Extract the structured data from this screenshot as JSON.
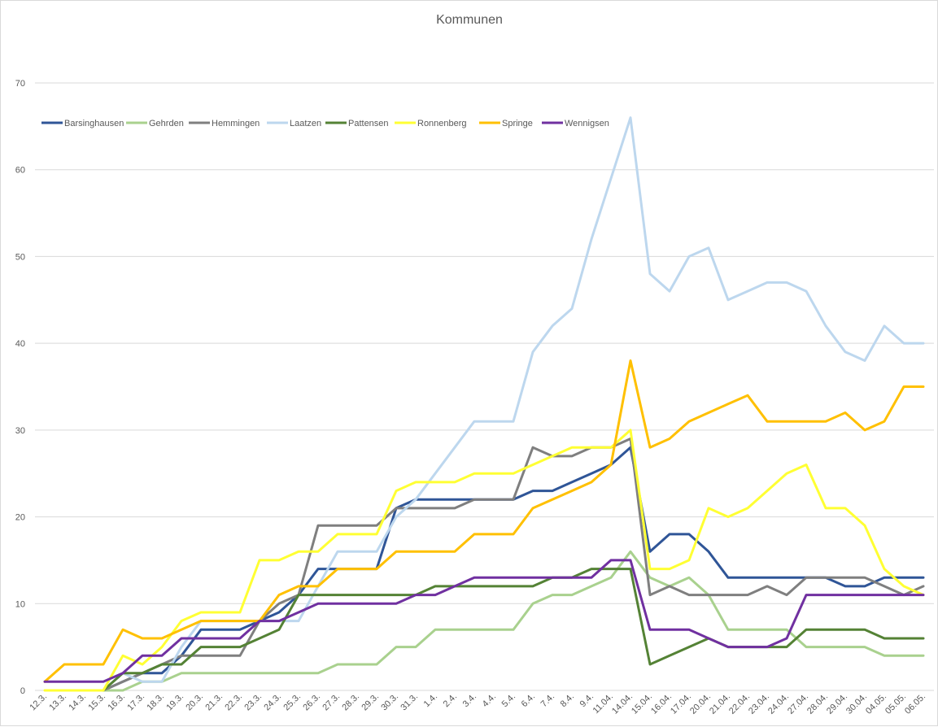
{
  "chart_data": {
    "type": "line",
    "title": "Kommunen",
    "xlabel": "",
    "ylabel": "",
    "ylim": [
      0,
      70
    ],
    "yticks": [
      0,
      10,
      20,
      30,
      40,
      50,
      60,
      70
    ],
    "grid": true,
    "legend_position": "top-left",
    "categories": [
      "12.3.",
      "13.3.",
      "14.3.",
      "15.3.",
      "16.3.",
      "17.3.",
      "18.3.",
      "19.3.",
      "20.3.",
      "21.3.",
      "22.3.",
      "23.3.",
      "24.3.",
      "25.3.",
      "26.3.",
      "27.3.",
      "28.3.",
      "29.3.",
      "30.3.",
      "31.3.",
      "1.4.",
      "2.4.",
      "3.4.",
      "4.4.",
      "5.4.",
      "6.4.",
      "7.4.",
      "8.4.",
      "9.4.",
      "11.04.",
      "14.04.",
      "15.04.",
      "16.04.",
      "17.04.",
      "20.04.",
      "21.04.",
      "22.04.",
      "23.04.",
      "24.04.",
      "27.04.",
      "28.04.",
      "29.04.",
      "30.04.",
      "04.05.",
      "05.05.",
      "06.05."
    ],
    "series": [
      {
        "name": "Barsinghausen",
        "color": "#2f5597",
        "values": [
          null,
          null,
          null,
          0,
          1,
          2,
          2,
          4,
          7,
          7,
          7,
          8,
          9,
          11,
          14,
          14,
          14,
          14,
          21,
          22,
          22,
          22,
          22,
          22,
          22,
          23,
          23,
          24,
          25,
          26,
          28,
          16,
          18,
          18,
          16,
          13,
          13,
          13,
          13,
          13,
          13,
          12,
          12,
          13,
          13,
          13
        ]
      },
      {
        "name": "Gehrden",
        "color": "#a9d18e",
        "values": [
          null,
          null,
          null,
          0,
          0,
          1,
          1,
          2,
          2,
          2,
          2,
          2,
          2,
          2,
          2,
          3,
          3,
          3,
          5,
          5,
          7,
          7,
          7,
          7,
          7,
          10,
          11,
          11,
          12,
          13,
          16,
          13,
          12,
          13,
          11,
          7,
          7,
          7,
          7,
          5,
          5,
          5,
          5,
          4,
          4,
          4
        ]
      },
      {
        "name": "Hemmingen",
        "color": "#7f7f7f",
        "values": [
          null,
          null,
          null,
          0,
          1,
          2,
          3,
          4,
          4,
          4,
          4,
          8,
          10,
          11,
          19,
          19,
          19,
          19,
          21,
          21,
          21,
          21,
          22,
          22,
          22,
          28,
          27,
          27,
          28,
          28,
          29,
          11,
          12,
          11,
          11,
          11,
          11,
          12,
          11,
          13,
          13,
          13,
          13,
          12,
          11,
          12
        ]
      },
      {
        "name": "Laatzen",
        "color": "#bdd7ee",
        "values": [
          null,
          null,
          null,
          0,
          2,
          1,
          1,
          5,
          8,
          8,
          8,
          8,
          8,
          8,
          12,
          16,
          16,
          16,
          20,
          22,
          25,
          28,
          31,
          31,
          31,
          39,
          42,
          44,
          52,
          59,
          66,
          48,
          46,
          50,
          51,
          45,
          46,
          47,
          47,
          46,
          42,
          39,
          38,
          42,
          40,
          40
        ]
      },
      {
        "name": "Pattensen",
        "color": "#548235",
        "values": [
          null,
          null,
          null,
          0,
          2,
          2,
          3,
          3,
          5,
          5,
          5,
          6,
          7,
          11,
          11,
          11,
          11,
          11,
          11,
          11,
          12,
          12,
          12,
          12,
          12,
          12,
          13,
          13,
          14,
          14,
          14,
          3,
          4,
          5,
          6,
          5,
          5,
          5,
          5,
          7,
          7,
          7,
          7,
          6,
          6,
          6
        ]
      },
      {
        "name": "Ronnenberg",
        "color": "#ffff33",
        "values": [
          0,
          0,
          0,
          0,
          4,
          3,
          5,
          8,
          9,
          9,
          9,
          15,
          15,
          16,
          16,
          18,
          18,
          18,
          23,
          24,
          24,
          24,
          25,
          25,
          25,
          26,
          27,
          28,
          28,
          28,
          30,
          14,
          14,
          15,
          21,
          20,
          21,
          23,
          25,
          26,
          21,
          21,
          19,
          14,
          12,
          11
        ]
      },
      {
        "name": "Springe",
        "color": "#ffc000",
        "values": [
          1,
          3,
          3,
          3,
          7,
          6,
          6,
          7,
          8,
          8,
          8,
          8,
          11,
          12,
          12,
          14,
          14,
          14,
          16,
          16,
          16,
          16,
          18,
          18,
          18,
          21,
          22,
          23,
          24,
          26,
          38,
          28,
          29,
          31,
          32,
          33,
          34,
          31,
          31,
          31,
          31,
          32,
          30,
          31,
          35,
          35
        ]
      },
      {
        "name": "Wennigsen",
        "color": "#7030a0",
        "values": [
          1,
          1,
          1,
          1,
          2,
          4,
          4,
          6,
          6,
          6,
          6,
          8,
          8,
          9,
          10,
          10,
          10,
          10,
          10,
          11,
          11,
          12,
          13,
          13,
          13,
          13,
          13,
          13,
          13,
          15,
          15,
          7,
          7,
          7,
          6,
          5,
          5,
          5,
          6,
          11,
          11,
          11,
          11,
          11,
          11,
          11
        ]
      }
    ]
  }
}
